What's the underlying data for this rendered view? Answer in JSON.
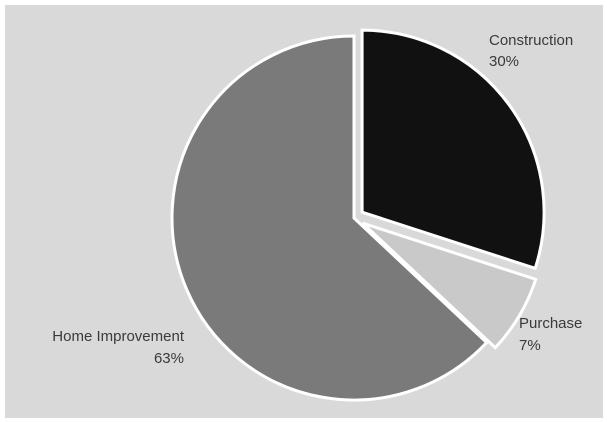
{
  "chart_data": {
    "type": "pie",
    "start_angle_deg": -90,
    "direction": "clockwise",
    "slices": [
      {
        "label": "Construction",
        "value": 30,
        "value_label": "30%",
        "color": "#111111",
        "exploded": true
      },
      {
        "label": "Purchase",
        "value": 7,
        "value_label": "7%",
        "color": "#c9c9c9",
        "exploded": true
      },
      {
        "label": "Home Improvement",
        "value": 63,
        "value_label": "63%",
        "color": "#7a7a7a",
        "exploded": false
      }
    ]
  },
  "colors": {
    "background": "#d9d9d9",
    "slice_stroke": "#ffffff"
  }
}
